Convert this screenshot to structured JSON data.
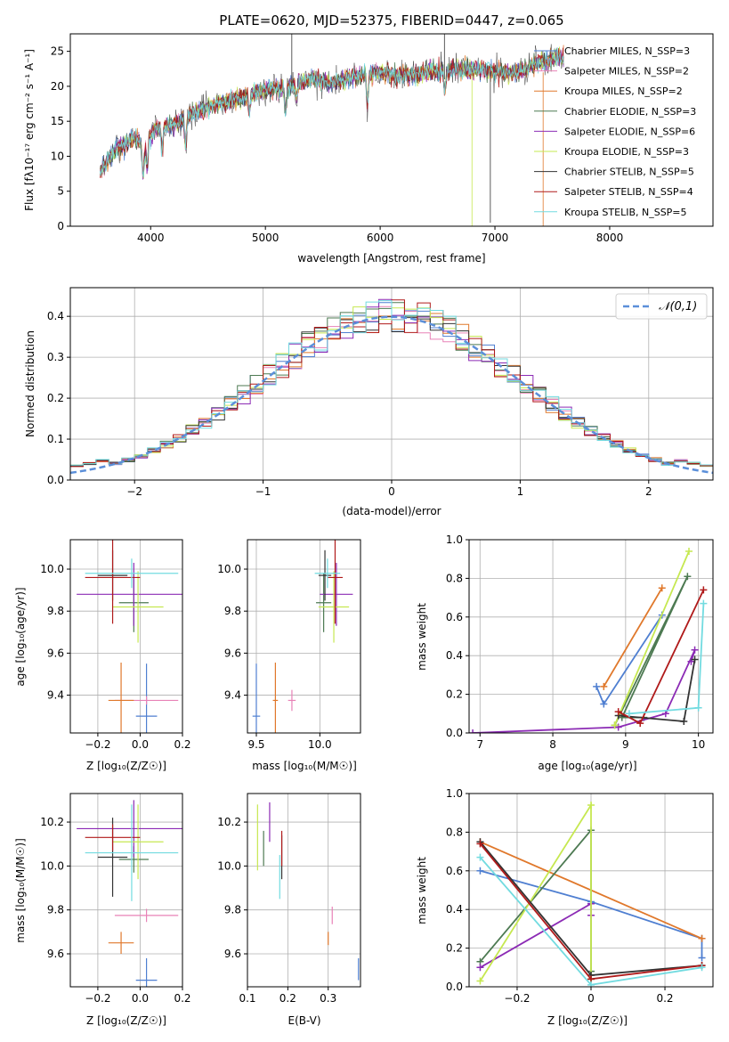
{
  "chart_data": [
    {
      "type": "line",
      "title": "PLATE=0620, MJD=52375, FIBERID=0447, z=0.065",
      "xlabel": "wavelength [Angstrom, rest frame]",
      "ylabel": "Flux [fλ10⁻¹⁷ erg cm⁻² s⁻¹ A⁻¹]",
      "xlim": [
        3300,
        8900
      ],
      "ylim": [
        0,
        27.5
      ],
      "xticks": [
        4000,
        5000,
        6000,
        7000,
        8000
      ],
      "yticks": [
        0,
        5,
        10,
        15,
        20,
        25
      ],
      "legend_position": "right",
      "grid": false,
      "series": [
        {
          "name": "Chabrier MILES, N_SSP=3",
          "color": "#4f7fd1"
        },
        {
          "name": "Salpeter MILES, N_SSP=2",
          "color": "#e882b7"
        },
        {
          "name": "Kroupa MILES, N_SSP=2",
          "color": "#e0782b"
        },
        {
          "name": "Chabrier ELODIE, N_SSP=3",
          "color": "#4d7a52"
        },
        {
          "name": "Salpeter ELODIE, N_SSP=6",
          "color": "#8c2bb5"
        },
        {
          "name": "Kroupa ELODIE, N_SSP=3",
          "color": "#c6e850"
        },
        {
          "name": "Chabrier STELIB, N_SSP=5",
          "color": "#333333"
        },
        {
          "name": "Salpeter STELIB, N_SSP=4",
          "color": "#b01a1a"
        },
        {
          "name": "Kroupa STELIB, N_SSP=5",
          "color": "#72dbe0"
        }
      ],
      "continuum": {
        "x": [
          3560,
          3700,
          3850,
          3950,
          4050,
          4200,
          4400,
          4600,
          4800,
          5000,
          5200,
          5400,
          5600,
          5800,
          6000,
          6200,
          6400,
          6600,
          6800,
          7000,
          7200,
          7400,
          7600
        ],
        "y": [
          8,
          11,
          12.5,
          12,
          14,
          14.5,
          16.5,
          17.5,
          18.5,
          19.5,
          20,
          21,
          20.5,
          21.5,
          22,
          21.5,
          22,
          22.5,
          22.5,
          22,
          22,
          23.5,
          24.5
        ]
      }
    },
    {
      "type": "histogram",
      "xlabel": "(data-model)/error",
      "ylabel": "Normed distribution",
      "xlim": [
        -2.5,
        2.5
      ],
      "ylim": [
        0,
        0.47
      ],
      "xticks": [
        -2,
        -1,
        0,
        1,
        2
      ],
      "yticks": [
        0.0,
        0.1,
        0.2,
        0.3,
        0.4
      ],
      "grid": true,
      "legend": "𝒩(0,1)",
      "legend_position": "top-right",
      "bin_width": 0.1
    },
    {
      "type": "scatter",
      "xlabel": "Z [log₁₀(Z/Z☉)]",
      "ylabel": "age  [log₁₀(age/yr)]",
      "xlim": [
        -0.33,
        0.2
      ],
      "ylim": [
        9.22,
        10.14
      ],
      "xticks": [
        -0.2,
        0.0,
        0.2
      ],
      "yticks": [
        9.4,
        9.6,
        9.8,
        10.0
      ],
      "grid": true,
      "points": [
        {
          "x": 0.03,
          "y": 9.3,
          "xerr": 0.05,
          "yerr": 0.25,
          "color": "#4f7fd1"
        },
        {
          "x": 0.03,
          "y": 9.375,
          "xerr": 0.15,
          "yerr": 0.02,
          "color": "#e882b7"
        },
        {
          "x": -0.09,
          "y": 9.375,
          "xerr": 0.06,
          "yerr": 0.18,
          "color": "#e0782b"
        },
        {
          "x": -0.03,
          "y": 9.84,
          "xerr": 0.07,
          "yerr": 0.14,
          "color": "#4d7a52"
        },
        {
          "x": -0.03,
          "y": 9.88,
          "xerr": 0.27,
          "yerr": 0.15,
          "color": "#8c2bb5"
        },
        {
          "x": -0.01,
          "y": 9.82,
          "xerr": 0.12,
          "yerr": 0.17,
          "color": "#c6e850"
        },
        {
          "x": -0.13,
          "y": 9.97,
          "xerr": 0.07,
          "yerr": 0.12,
          "color": "#333333"
        },
        {
          "x": -0.13,
          "y": 9.96,
          "xerr": 0.13,
          "yerr": 0.22,
          "color": "#b01a1a"
        },
        {
          "x": -0.04,
          "y": 9.98,
          "xerr": 0.22,
          "yerr": 0.07,
          "color": "#72dbe0"
        }
      ]
    },
    {
      "type": "scatter",
      "xlabel": "mass [log₁₀(M/M☉)]",
      "xlim": [
        9.43,
        10.32
      ],
      "ylim": [
        9.22,
        10.14
      ],
      "xticks": [
        9.5,
        10.0
      ],
      "yticks": [
        9.4,
        9.6,
        9.8,
        10.0
      ],
      "grid": true,
      "points": [
        {
          "x": 9.5,
          "y": 9.3,
          "xerr": 0.03,
          "yerr": 0.25,
          "color": "#4f7fd1"
        },
        {
          "x": 9.78,
          "y": 9.375,
          "xerr": 0.03,
          "yerr": 0.05,
          "color": "#e882b7"
        },
        {
          "x": 9.65,
          "y": 9.375,
          "xerr": 0.02,
          "yerr": 0.18,
          "color": "#e0782b"
        },
        {
          "x": 10.03,
          "y": 9.84,
          "xerr": 0.06,
          "yerr": 0.14,
          "color": "#4d7a52"
        },
        {
          "x": 10.13,
          "y": 9.88,
          "xerr": 0.13,
          "yerr": 0.15,
          "color": "#8c2bb5"
        },
        {
          "x": 10.11,
          "y": 9.82,
          "xerr": 0.12,
          "yerr": 0.17,
          "color": "#c6e850"
        },
        {
          "x": 10.04,
          "y": 9.97,
          "xerr": 0.05,
          "yerr": 0.12,
          "color": "#333333"
        },
        {
          "x": 10.12,
          "y": 9.96,
          "xerr": 0.06,
          "yerr": 0.22,
          "color": "#b01a1a"
        },
        {
          "x": 10.06,
          "y": 9.98,
          "xerr": 0.1,
          "yerr": 0.07,
          "color": "#72dbe0"
        }
      ]
    },
    {
      "type": "line",
      "xlabel": "age  [log₁₀(age/yr)]",
      "ylabel": "mass weight",
      "xlim": [
        6.85,
        10.2
      ],
      "ylim": [
        0,
        1.0
      ],
      "xticks": [
        7,
        8,
        9,
        10
      ],
      "yticks": [
        0.0,
        0.2,
        0.4,
        0.6,
        0.8,
        1.0
      ],
      "grid": true,
      "series": [
        {
          "color": "#4f7fd1",
          "x": [
            8.6,
            8.7,
            9.5
          ],
          "y": [
            0.24,
            0.15,
            0.61
          ]
        },
        {
          "color": "#e0782b",
          "x": [
            8.7,
            9.5
          ],
          "y": [
            0.24,
            0.75
          ]
        },
        {
          "color": "#4d7a52",
          "x": [
            8.85,
            9.85,
            8.95,
            9.25
          ],
          "y": [
            0.04,
            0.81,
            0.08,
            0.08
          ]
        },
        {
          "color": "#8c2bb5",
          "x": [
            6.9,
            8.9,
            9.55,
            9.95,
            9.9
          ],
          "y": [
            0.0,
            0.03,
            0.1,
            0.43,
            0.37
          ]
        },
        {
          "color": "#c6e850",
          "x": [
            8.85,
            9.87
          ],
          "y": [
            0.04,
            0.94
          ]
        },
        {
          "color": "#333333",
          "x": [
            8.9,
            9.8,
            9.95
          ],
          "y": [
            0.09,
            0.06,
            0.38
          ]
        },
        {
          "color": "#b01a1a",
          "x": [
            8.9,
            9.2,
            10.07
          ],
          "y": [
            0.11,
            0.05,
            0.74
          ]
        },
        {
          "color": "#72dbe0",
          "x": [
            9.05,
            10.0,
            10.07
          ],
          "y": [
            0.1,
            0.13,
            0.67
          ]
        }
      ]
    },
    {
      "type": "scatter",
      "xlabel": "Z [log₁₀(Z/Z☉)]",
      "ylabel": "mass [log₁₀(M/M☉)]",
      "xlim": [
        -0.33,
        0.2
      ],
      "ylim": [
        9.45,
        10.33
      ],
      "xticks": [
        -0.2,
        0.0,
        0.2
      ],
      "yticks": [
        9.6,
        9.8,
        10.0,
        10.2
      ],
      "grid": true,
      "points": [
        {
          "x": 0.03,
          "y": 9.48,
          "xerr": 0.05,
          "yerr": 0.1,
          "color": "#4f7fd1"
        },
        {
          "x": 0.03,
          "y": 9.775,
          "xerr": 0.15,
          "yerr": 0.03,
          "color": "#e882b7"
        },
        {
          "x": -0.09,
          "y": 9.65,
          "xerr": 0.06,
          "yerr": 0.05,
          "color": "#e0782b"
        },
        {
          "x": -0.03,
          "y": 10.03,
          "xerr": 0.07,
          "yerr": 0.06,
          "color": "#4d7a52"
        },
        {
          "x": -0.03,
          "y": 10.17,
          "xerr": 0.27,
          "yerr": 0.13,
          "color": "#8c2bb5"
        },
        {
          "x": -0.01,
          "y": 10.11,
          "xerr": 0.12,
          "yerr": 0.17,
          "color": "#c6e850"
        },
        {
          "x": -0.13,
          "y": 10.04,
          "xerr": 0.07,
          "yerr": 0.18,
          "color": "#333333"
        },
        {
          "x": -0.13,
          "y": 10.13,
          "xerr": 0.13,
          "yerr": 0.06,
          "color": "#b01a1a"
        },
        {
          "x": -0.04,
          "y": 10.06,
          "xerr": 0.22,
          "yerr": 0.22,
          "color": "#72dbe0"
        }
      ]
    },
    {
      "type": "scatter",
      "xlabel": "E(B-V)",
      "xlim": [
        0.1,
        0.38
      ],
      "ylim": [
        9.45,
        10.33
      ],
      "xticks": [
        0.1,
        0.2,
        0.3
      ],
      "yticks": [
        9.6,
        9.8,
        10.0,
        10.2
      ],
      "grid": true,
      "points": [
        {
          "x": 0.375,
          "y": 9.53,
          "yerr": 0.05,
          "color": "#4f7fd1"
        },
        {
          "x": 0.31,
          "y": 9.775,
          "yerr": 0.04,
          "color": "#e882b7"
        },
        {
          "x": 0.3,
          "y": 9.67,
          "yerr": 0.03,
          "color": "#e0782b"
        },
        {
          "x": 0.14,
          "y": 10.08,
          "yerr": 0.08,
          "color": "#4d7a52"
        },
        {
          "x": 0.155,
          "y": 10.2,
          "yerr": 0.09,
          "color": "#8c2bb5"
        },
        {
          "x": 0.125,
          "y": 10.13,
          "yerr": 0.15,
          "color": "#c6e850"
        },
        {
          "x": 0.185,
          "y": 10.04,
          "yerr": 0.1,
          "color": "#333333"
        },
        {
          "x": 0.185,
          "y": 10.08,
          "yerr": 0.08,
          "color": "#b01a1a"
        },
        {
          "x": 0.18,
          "y": 9.95,
          "yerr": 0.1,
          "color": "#72dbe0"
        }
      ]
    },
    {
      "type": "line",
      "xlabel": "Z [log₁₀(Z/Z☉)]",
      "ylabel": "mass weight",
      "xlim": [
        -0.33,
        0.33
      ],
      "ylim": [
        0,
        1.0
      ],
      "xticks": [
        -0.2,
        0.0,
        0.2
      ],
      "yticks": [
        0.0,
        0.2,
        0.4,
        0.6,
        0.8,
        1.0
      ],
      "grid": true,
      "series": [
        {
          "color": "#4f7fd1",
          "x": [
            -0.3,
            0.0,
            0.3,
            0.3
          ],
          "y": [
            0.6,
            0.44,
            0.25,
            0.15
          ]
        },
        {
          "color": "#e0782b",
          "x": [
            -0.3,
            0.3
          ],
          "y": [
            0.75,
            0.25
          ]
        },
        {
          "color": "#4d7a52",
          "x": [
            -0.3,
            0.0,
            0.0,
            0.0
          ],
          "y": [
            0.13,
            0.81,
            0.08,
            0.04
          ]
        },
        {
          "color": "#8c2bb5",
          "x": [
            -0.3,
            0.0,
            0.0
          ],
          "y": [
            0.1,
            0.43,
            0.37
          ]
        },
        {
          "color": "#c6e850",
          "x": [
            -0.3,
            0.0,
            0.0
          ],
          "y": [
            0.03,
            0.94,
            0.04
          ]
        },
        {
          "color": "#333333",
          "x": [
            -0.3,
            0.0,
            0.3
          ],
          "y": [
            0.75,
            0.06,
            0.11
          ]
        },
        {
          "color": "#b01a1a",
          "x": [
            -0.3,
            0.0,
            0.3
          ],
          "y": [
            0.74,
            0.04,
            0.11
          ]
        },
        {
          "color": "#72dbe0",
          "x": [
            -0.3,
            0.0,
            0.3
          ],
          "y": [
            0.67,
            0.01,
            0.1
          ]
        }
      ]
    }
  ]
}
